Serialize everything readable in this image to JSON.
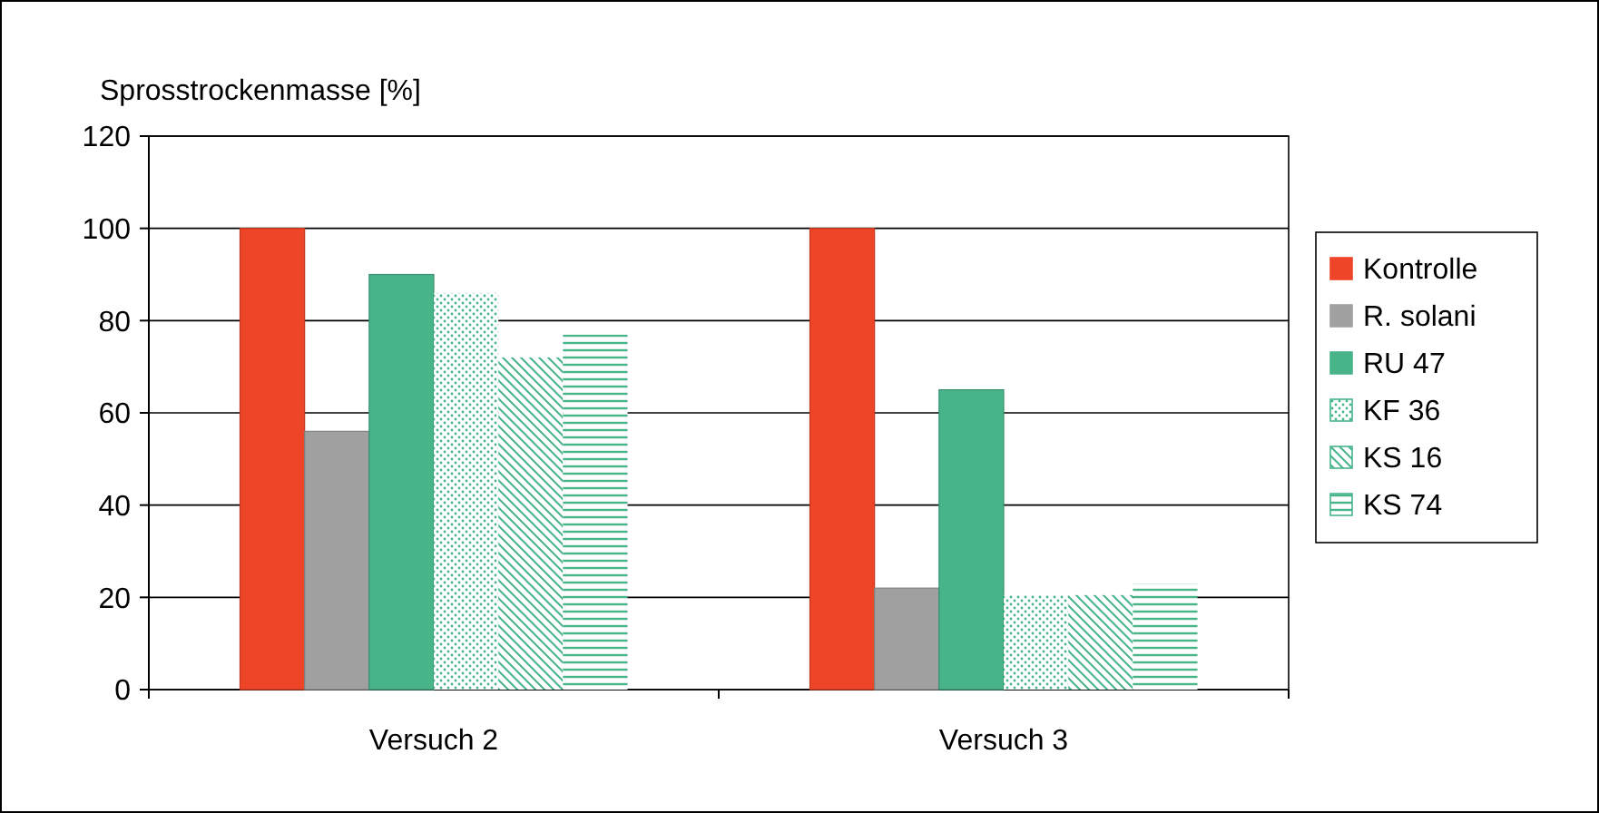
{
  "chart_data": {
    "type": "bar",
    "ylabel": "Sprosstrockenmasse [%]",
    "categories": [
      "Versuch 2",
      "Versuch 3"
    ],
    "series": [
      {
        "name": "Kontrolle",
        "color": "#ee4528",
        "values": [
          100,
          100
        ]
      },
      {
        "name": "R. solani",
        "color": "#a0a0a0",
        "values": [
          56,
          22
        ]
      },
      {
        "name": "RU 47",
        "color": "#47b48a",
        "values": [
          90,
          65
        ]
      },
      {
        "name": "KF 36",
        "color": "#47b48a",
        "values": [
          86,
          20.5
        ]
      },
      {
        "name": "KS 16",
        "color": "#47b48a",
        "values": [
          72,
          20.5
        ]
      },
      {
        "name": "KS 74",
        "color": "#47b48a",
        "values": [
          77,
          23
        ]
      }
    ],
    "ylim": [
      0,
      120
    ],
    "yticks": [
      0,
      20,
      40,
      60,
      80,
      100,
      120
    ],
    "grid": "y",
    "legend": "right"
  }
}
